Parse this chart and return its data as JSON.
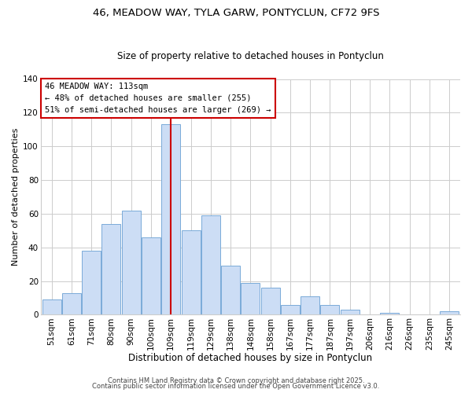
{
  "title": "46, MEADOW WAY, TYLA GARW, PONTYCLUN, CF72 9FS",
  "subtitle": "Size of property relative to detached houses in Pontyclun",
  "xlabel": "Distribution of detached houses by size in Pontyclun",
  "ylabel": "Number of detached properties",
  "bar_color": "#ccddf5",
  "bar_edge_color": "#7aaad8",
  "background_color": "#ffffff",
  "grid_color": "#cccccc",
  "categories": [
    "51sqm",
    "61sqm",
    "71sqm",
    "80sqm",
    "90sqm",
    "100sqm",
    "109sqm",
    "119sqm",
    "129sqm",
    "138sqm",
    "148sqm",
    "158sqm",
    "167sqm",
    "177sqm",
    "187sqm",
    "197sqm",
    "206sqm",
    "216sqm",
    "226sqm",
    "235sqm",
    "245sqm"
  ],
  "values": [
    9,
    13,
    38,
    54,
    62,
    46,
    113,
    50,
    59,
    29,
    19,
    16,
    6,
    11,
    6,
    3,
    0,
    1,
    0,
    0,
    2
  ],
  "ylim": [
    0,
    140
  ],
  "yticks": [
    0,
    20,
    40,
    60,
    80,
    100,
    120,
    140
  ],
  "vline_x_idx": 6.5,
  "vline_color": "#cc0000",
  "annotation_title": "46 MEADOW WAY: 113sqm",
  "annotation_line1": "← 48% of detached houses are smaller (255)",
  "annotation_line2": "51% of semi-detached houses are larger (269) →",
  "annotation_box_color": "#ffffff",
  "annotation_box_edge": "#cc0000",
  "footer_line1": "Contains HM Land Registry data © Crown copyright and database right 2025.",
  "footer_line2": "Contains public sector information licensed under the Open Government Licence v3.0.",
  "title_fontsize": 9.5,
  "subtitle_fontsize": 8.5,
  "xlabel_fontsize": 8.5,
  "ylabel_fontsize": 8,
  "tick_fontsize": 7.5,
  "annotation_fontsize": 7.5,
  "footer_fontsize": 6
}
